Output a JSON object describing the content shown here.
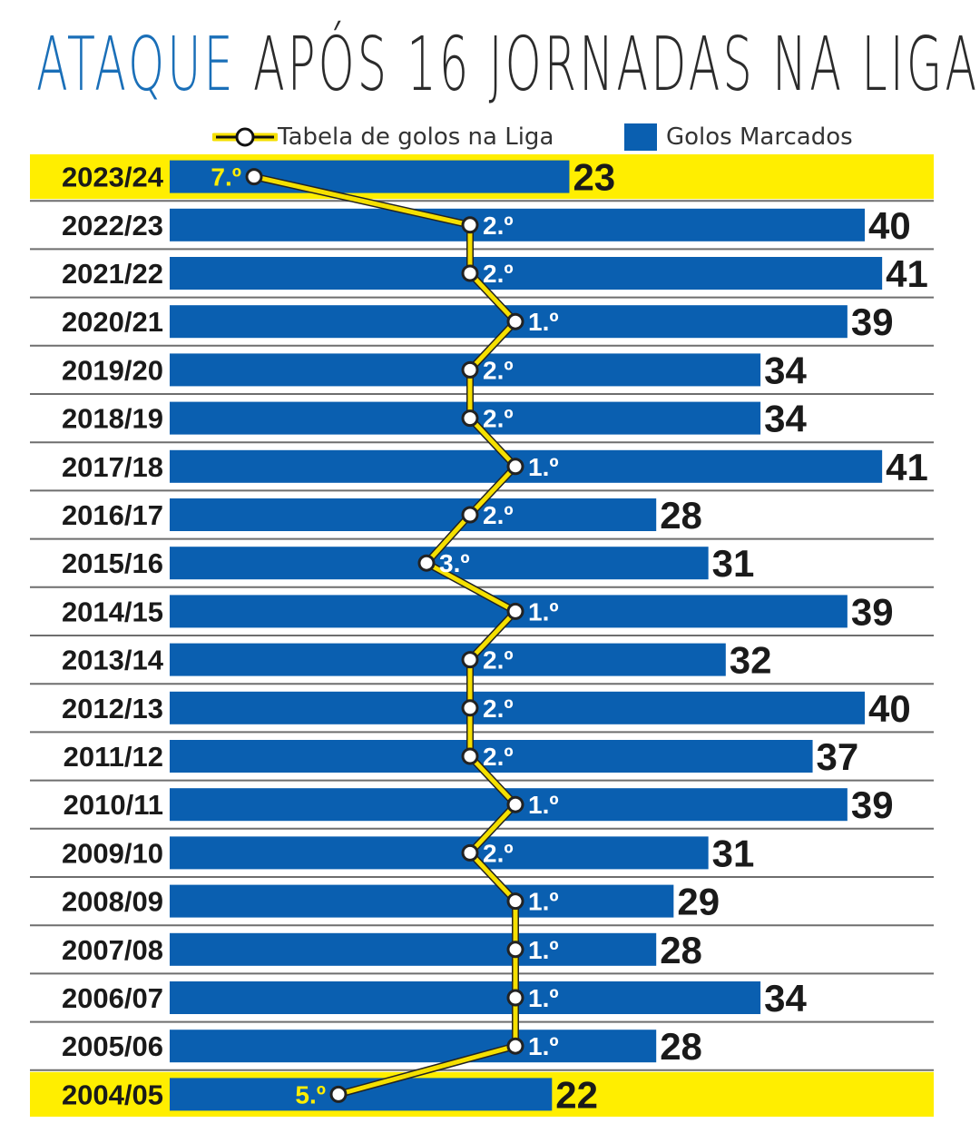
{
  "title": {
    "accent": "ATAQUE",
    "rest": "APÓS 16 JORNADAS NA LIGA"
  },
  "legend": {
    "line_label": "Tabela de golos na Liga",
    "bar_label": "Golos Marcados"
  },
  "colors": {
    "bar": "#0a5fb0",
    "highlight": "#ffee00",
    "line": "#f5e000",
    "title_accent": "#1a6fb8",
    "text": "#1a1a1a",
    "rank_text": "#ffffff",
    "highlight_rank_text": "#ffee00"
  },
  "chart_data": {
    "type": "bar",
    "orientation": "horizontal",
    "categories": [
      "2023/24",
      "2022/23",
      "2021/22",
      "2020/21",
      "2019/20",
      "2018/19",
      "2017/18",
      "2016/17",
      "2015/16",
      "2014/15",
      "2013/14",
      "2012/13",
      "2011/12",
      "2010/11",
      "2009/10",
      "2008/09",
      "2007/08",
      "2006/07",
      "2005/06",
      "2004/05"
    ],
    "series": [
      {
        "name": "Golos Marcados",
        "values": [
          23,
          40,
          41,
          39,
          34,
          34,
          41,
          28,
          31,
          39,
          32,
          40,
          37,
          39,
          31,
          29,
          28,
          34,
          28,
          22
        ]
      },
      {
        "name": "Tabela de golos na Liga",
        "values": [
          7,
          2,
          2,
          1,
          2,
          2,
          1,
          2,
          3,
          1,
          2,
          2,
          2,
          1,
          2,
          1,
          1,
          1,
          1,
          5
        ],
        "labels": [
          "7.º",
          "2.º",
          "2.º",
          "1.º",
          "2.º",
          "2.º",
          "1.º",
          "2.º",
          "3.º",
          "1.º",
          "2.º",
          "2.º",
          "2.º",
          "1.º",
          "2.º",
          "1.º",
          "1.º",
          "1.º",
          "1.º",
          "5.º"
        ]
      }
    ],
    "highlighted": [
      "2023/24",
      "2004/05"
    ],
    "xlim": [
      0,
      41
    ],
    "legend": "top",
    "grid": false
  }
}
